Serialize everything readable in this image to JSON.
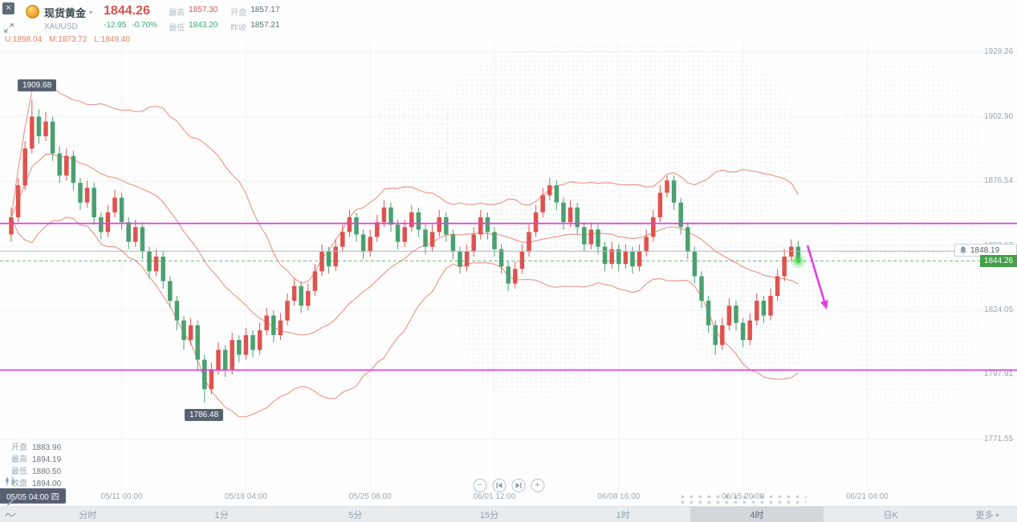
{
  "window": {
    "close_label": "×"
  },
  "header": {
    "symbol_name": "现货黄金",
    "caret": "▾",
    "symbol_code": "XAUUSD",
    "price": "1844.26",
    "change": "-12.95",
    "change_pct": "-0.70%",
    "stats": [
      {
        "label": "最高",
        "value": "1857.30",
        "tone": "up"
      },
      {
        "label": "最低",
        "value": "1843.20",
        "tone": "down"
      },
      {
        "label": "开盘",
        "value": "1857.17",
        "tone": "plain"
      },
      {
        "label": "昨收",
        "value": "1857.21",
        "tone": "plain"
      }
    ],
    "boll_values": [
      "U:1898.04",
      "M:1873.72",
      "L:1849.40"
    ]
  },
  "hover_panel": {
    "rows": [
      {
        "label": "开盘",
        "value": "1883.96"
      },
      {
        "label": "最高",
        "value": "1894.19"
      },
      {
        "label": "最低",
        "value": "1880.50"
      },
      {
        "label": "收盘",
        "value": "1894.00"
      }
    ],
    "date_tooltip": "05/05 04:00 四"
  },
  "markers": {
    "high": "1909.68",
    "low": "1786.48",
    "alert_price": "1848.19",
    "last_price": "1844.26"
  },
  "controls": {
    "zoom_out_label": "−",
    "zoom_in_label": "+"
  },
  "toolbar": {
    "items": [
      "分时",
      "1分",
      "5分",
      "15分",
      "1时",
      "4时",
      "日K"
    ],
    "active": "4时",
    "more": "更多",
    "more_caret": "▴"
  },
  "colors": {
    "up": "#e0524e",
    "down": "#4aa06e",
    "band": "#e89b8e",
    "magenta": "#e23ce2",
    "price_badge_bg": "#43a047",
    "grid": "#f0f2f4",
    "alert_line": "#aab6bf"
  },
  "chart_data": {
    "type": "candlestick",
    "title": "现货黄金 XAUUSD 4时 K线 + BOLL",
    "symbol": "XAUUSD",
    "timeframe": "4时",
    "ylim": [
      1758,
      1942
    ],
    "grid": true,
    "y_axis_labels": [
      "1929.26",
      "1902.90",
      "1876.54",
      "1850.17",
      "1824.05",
      "1797.91",
      "1771.55"
    ],
    "x_axis_labels": [
      "05/11 00:00",
      "05/18 04:00",
      "05/25 08:00",
      "06/01 12:00",
      "06/08 16:00",
      "06/15 20:00",
      "06/21 04:00"
    ],
    "x_tick_candle_indices": [
      16,
      34,
      52,
      70,
      88,
      106,
      124
    ],
    "series": [
      {
        "name": "K线",
        "type": "candles",
        "candles": [
          [
            1855,
            1866,
            1852,
            1862
          ],
          [
            1862,
            1878,
            1860,
            1875
          ],
          [
            1875,
            1893,
            1873,
            1890
          ],
          [
            1890,
            1909.7,
            1888,
            1903
          ],
          [
            1903,
            1906,
            1892,
            1895
          ],
          [
            1895,
            1905,
            1893,
            1901
          ],
          [
            1901,
            1903,
            1885,
            1888
          ],
          [
            1888,
            1891,
            1876,
            1879
          ],
          [
            1879,
            1890,
            1877,
            1887
          ],
          [
            1887,
            1889,
            1873,
            1876
          ],
          [
            1876,
            1878,
            1865,
            1868
          ],
          [
            1868,
            1877,
            1866,
            1874
          ],
          [
            1874,
            1876,
            1859,
            1862
          ],
          [
            1862,
            1864,
            1853,
            1856
          ],
          [
            1856,
            1867,
            1854,
            1864
          ],
          [
            1864,
            1873,
            1862,
            1870
          ],
          [
            1870,
            1872,
            1857,
            1860
          ],
          [
            1860,
            1862,
            1849,
            1852
          ],
          [
            1852,
            1861,
            1850,
            1858
          ],
          [
            1858,
            1860,
            1845,
            1848
          ],
          [
            1848,
            1850,
            1837,
            1840
          ],
          [
            1840,
            1849,
            1838,
            1846
          ],
          [
            1846,
            1848,
            1833,
            1836
          ],
          [
            1836,
            1838,
            1825,
            1828
          ],
          [
            1828,
            1830,
            1816,
            1820
          ],
          [
            1820,
            1822,
            1808,
            1812
          ],
          [
            1812,
            1821,
            1810,
            1818
          ],
          [
            1818,
            1820,
            1800,
            1804
          ],
          [
            1804,
            1806,
            1786.5,
            1792
          ],
          [
            1792,
            1803,
            1790,
            1800
          ],
          [
            1800,
            1811,
            1798,
            1808
          ],
          [
            1808,
            1810,
            1797,
            1800
          ],
          [
            1800,
            1815,
            1798,
            1812
          ],
          [
            1812,
            1814,
            1803,
            1806
          ],
          [
            1806,
            1817,
            1804,
            1814
          ],
          [
            1814,
            1816,
            1805,
            1808
          ],
          [
            1808,
            1819,
            1806,
            1816
          ],
          [
            1816,
            1825,
            1814,
            1822
          ],
          [
            1822,
            1824,
            1811,
            1814
          ],
          [
            1814,
            1823,
            1812,
            1820
          ],
          [
            1820,
            1831,
            1818,
            1828
          ],
          [
            1828,
            1837,
            1826,
            1834
          ],
          [
            1834,
            1836,
            1823,
            1826
          ],
          [
            1826,
            1835,
            1824,
            1832
          ],
          [
            1832,
            1843,
            1830,
            1840
          ],
          [
            1840,
            1851,
            1838,
            1848
          ],
          [
            1848,
            1850,
            1839,
            1842
          ],
          [
            1842,
            1853,
            1840,
            1850
          ],
          [
            1850,
            1859,
            1848,
            1856
          ],
          [
            1856,
            1865,
            1854,
            1862
          ],
          [
            1862,
            1864,
            1852,
            1855
          ],
          [
            1855,
            1857,
            1845,
            1848
          ],
          [
            1848,
            1857,
            1846,
            1854
          ],
          [
            1854,
            1863,
            1852,
            1860
          ],
          [
            1860,
            1869,
            1858,
            1866
          ],
          [
            1866,
            1868,
            1856,
            1859
          ],
          [
            1859,
            1861,
            1849,
            1852
          ],
          [
            1852,
            1861,
            1850,
            1858
          ],
          [
            1858,
            1867,
            1856,
            1864
          ],
          [
            1864,
            1866,
            1854,
            1857
          ],
          [
            1857,
            1859,
            1847,
            1850
          ],
          [
            1850,
            1859,
            1848,
            1856
          ],
          [
            1856,
            1865,
            1854,
            1862
          ],
          [
            1862,
            1864,
            1852,
            1855
          ],
          [
            1855,
            1857,
            1845,
            1848
          ],
          [
            1848,
            1850,
            1839,
            1842
          ],
          [
            1842,
            1851,
            1840,
            1848
          ],
          [
            1848,
            1858,
            1846,
            1855
          ],
          [
            1855,
            1865,
            1853,
            1862
          ],
          [
            1862,
            1864,
            1853,
            1856
          ],
          [
            1856,
            1858,
            1846,
            1849
          ],
          [
            1849,
            1851,
            1839,
            1842
          ],
          [
            1842,
            1844,
            1832,
            1835
          ],
          [
            1835,
            1844,
            1833,
            1841
          ],
          [
            1841,
            1851,
            1839,
            1848
          ],
          [
            1848,
            1859,
            1846,
            1856
          ],
          [
            1856,
            1867,
            1854,
            1864
          ],
          [
            1864,
            1874,
            1862,
            1871
          ],
          [
            1871,
            1878,
            1869,
            1875
          ],
          [
            1875,
            1877,
            1865,
            1868
          ],
          [
            1868,
            1870,
            1857,
            1860
          ],
          [
            1860,
            1869,
            1858,
            1866
          ],
          [
            1866,
            1868,
            1855,
            1858
          ],
          [
            1858,
            1860,
            1848,
            1851
          ],
          [
            1851,
            1860,
            1849,
            1857
          ],
          [
            1857,
            1859,
            1847,
            1850
          ],
          [
            1850,
            1852,
            1840,
            1843
          ],
          [
            1843,
            1852,
            1841,
            1849
          ],
          [
            1849,
            1851,
            1840,
            1843
          ],
          [
            1843,
            1851,
            1841,
            1848
          ],
          [
            1848,
            1850,
            1839,
            1842
          ],
          [
            1842,
            1851,
            1840,
            1848
          ],
          [
            1848,
            1857,
            1846,
            1854
          ],
          [
            1854,
            1865,
            1852,
            1862
          ],
          [
            1862,
            1875,
            1860,
            1872
          ],
          [
            1872,
            1879,
            1870,
            1877
          ],
          [
            1877,
            1879,
            1865,
            1868
          ],
          [
            1868,
            1870,
            1855,
            1858
          ],
          [
            1858,
            1860,
            1845,
            1848
          ],
          [
            1848,
            1850,
            1835,
            1838
          ],
          [
            1838,
            1840,
            1825,
            1828
          ],
          [
            1828,
            1830,
            1815,
            1818
          ],
          [
            1818,
            1820,
            1806,
            1810
          ],
          [
            1810,
            1821,
            1808,
            1818
          ],
          [
            1818,
            1829,
            1816,
            1826
          ],
          [
            1826,
            1828,
            1816,
            1819
          ],
          [
            1819,
            1821,
            1809,
            1812
          ],
          [
            1812,
            1823,
            1810,
            1820
          ],
          [
            1820,
            1831,
            1818,
            1828
          ],
          [
            1828,
            1830,
            1819,
            1822
          ],
          [
            1822,
            1833,
            1820,
            1830
          ],
          [
            1830,
            1841,
            1828,
            1838
          ],
          [
            1838,
            1849,
            1836,
            1846
          ],
          [
            1846,
            1853,
            1844,
            1850
          ],
          [
            1850,
            1852.5,
            1843.2,
            1844.26
          ]
        ]
      },
      {
        "name": "BOLL",
        "type": "bollinger",
        "period": 20,
        "multiplier": 2,
        "current": {
          "U": 1898.04,
          "M": 1873.72,
          "L": 1849.4
        }
      }
    ],
    "annotations": {
      "horizontal_lines": [
        {
          "price": 1859.5
        },
        {
          "price": 1799.8
        }
      ],
      "alert_line": {
        "price": 1848.19
      },
      "last_price_line": {
        "price": 1844.26
      },
      "arrow": {
        "from": [
          1006,
          306
        ],
        "to": [
          1030,
          386
        ]
      },
      "high_label": {
        "price": 1909.68,
        "text": "1909.68"
      },
      "low_label": {
        "price": 1786.48,
        "text": "1786.48"
      }
    }
  }
}
